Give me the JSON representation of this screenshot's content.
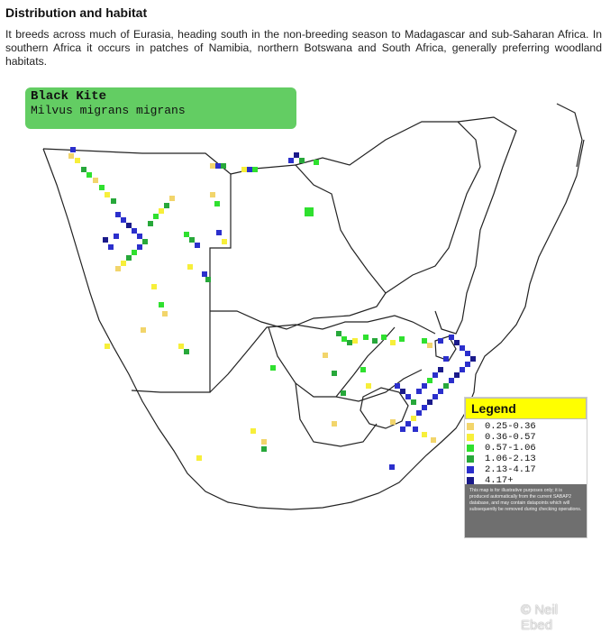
{
  "section": {
    "heading": "Distribution and habitat",
    "paragraph": "It breeds across much of Eurasia, heading south in the non-breeding season to Madagascar and sub-Saharan Africa. In southern Africa it occurs in patches of Namibia, northern Botswana and South Africa, generally preferring woodland habitats."
  },
  "map": {
    "species_common": "Black Kite",
    "species_scientific": "Milvus migrans migrans",
    "legend_title": "Legend",
    "legend_items": [
      {
        "label": "0.25-0.36",
        "color": "#f2d56b"
      },
      {
        "label": "0.36-0.57",
        "color": "#f7ef3a"
      },
      {
        "label": "0.57-1.06",
        "color": "#2fe02f"
      },
      {
        "label": "1.06-2.13",
        "color": "#27a83a"
      },
      {
        "label": "2.13-4.17",
        "color": "#2b2fcc"
      },
      {
        "label": "4.17+",
        "color": "#1a1a8a"
      }
    ],
    "legend_note": "This map is for illustrative purposes only; it is produced automatically from the current SABAP2 database, and may contain datapoints which will subsequently be removed during checking operations.",
    "credit": "© Neil Ebed",
    "colors": {
      "header_bg": "#63cd63",
      "legend_header_bg": "#ffff00"
    }
  }
}
